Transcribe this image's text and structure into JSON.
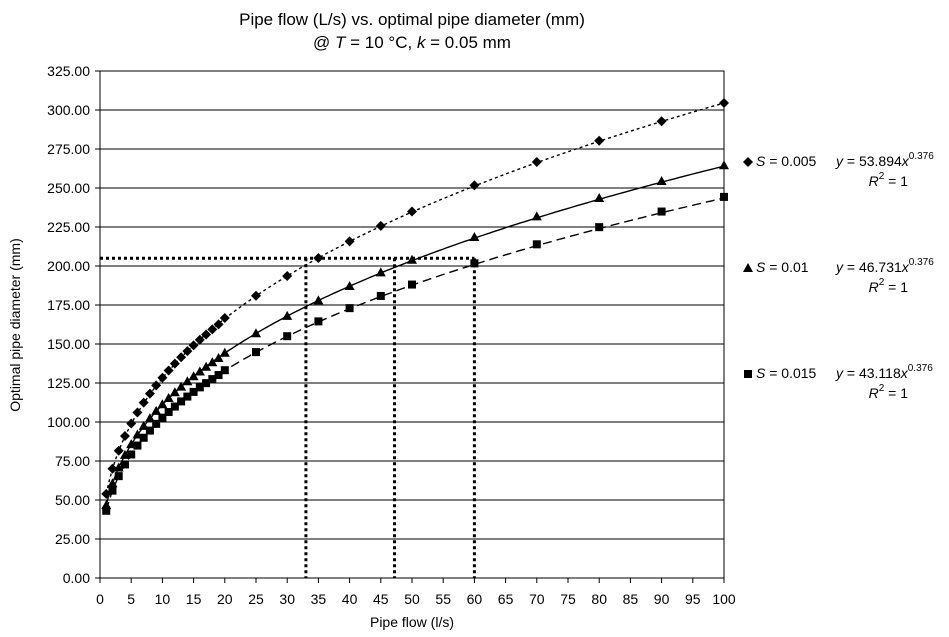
{
  "chart_data": {
    "type": "scatter",
    "title_line1": "Pipe flow (L/s) vs. optimal pipe diameter (mm)",
    "title_line2": {
      "prefix": "@ ",
      "t_var": "T",
      "t_rest": " = 10 °C, ",
      "k_var": "k",
      "k_rest": " = 0.05 mm"
    },
    "xlabel": "Pipe flow  (l/s)",
    "ylabel": "Optimal pipe diameter (mm)",
    "xlim": [
      0,
      100
    ],
    "ylim": [
      0,
      325
    ],
    "x_ticks": [
      0,
      5,
      10,
      15,
      20,
      25,
      30,
      35,
      40,
      45,
      50,
      55,
      60,
      65,
      70,
      75,
      80,
      85,
      90,
      95,
      100
    ],
    "y_ticks": [
      "0.00",
      "25.00",
      "50.00",
      "75.00",
      "100.00",
      "125.00",
      "150.00",
      "175.00",
      "200.00",
      "225.00",
      "250.00",
      "275.00",
      "300.00",
      "325.00"
    ],
    "grid": "horizontal",
    "legend_position": "right",
    "x": [
      1,
      2,
      3,
      4,
      5,
      6,
      7,
      8,
      9,
      10,
      11,
      12,
      13,
      14,
      15,
      16,
      17,
      18,
      19,
      20,
      25,
      30,
      35,
      40,
      45,
      50,
      60,
      70,
      80,
      90,
      100
    ],
    "series": [
      {
        "label_var": "S",
        "label_rest": " = 0.005",
        "marker": "diamond",
        "line": "short-dash",
        "coef": 53.894,
        "exp": 0.376,
        "eq_prefix": "y",
        "eq_mid": " = 53.894",
        "eq_x": "x",
        "eq_exp": "0.376",
        "r2_var": "R",
        "r2_sup": "2",
        "r2_rest": " = 1",
        "values": [
          53.9,
          70.0,
          81.6,
          91.0,
          99.0,
          106.1,
          112.4,
          118.2,
          123.5,
          128.4,
          133.0,
          137.4,
          141.5,
          145.4,
          149.1,
          152.7,
          156.1,
          159.4,
          162.6,
          166.7,
          180.9,
          193.6,
          205.1,
          215.8,
          225.7,
          234.9,
          251.7,
          266.7,
          280.3,
          292.8,
          304.5
        ]
      },
      {
        "label_var": "S",
        "label_rest": " = 0.01",
        "marker": "triangle",
        "line": "solid",
        "coef": 46.731,
        "exp": 0.376,
        "eq_prefix": "y",
        "eq_mid": " = 46.731",
        "eq_x": "x",
        "eq_exp": "0.376",
        "r2_var": "R",
        "r2_sup": "2",
        "r2_rest": " = 1",
        "values": [
          46.7,
          60.7,
          70.8,
          78.9,
          85.8,
          92.0,
          97.5,
          102.5,
          107.1,
          111.4,
          115.4,
          119.1,
          122.7,
          126.1,
          129.3,
          132.4,
          135.4,
          138.3,
          141.0,
          144.4,
          156.9,
          168.0,
          178.0,
          187.2,
          195.9,
          204.0,
          218.6,
          231.8,
          243.6,
          254.5,
          264.6
        ]
      },
      {
        "label_var": "S",
        "label_rest": " = 0.015",
        "marker": "square",
        "line": "long-dash",
        "coef": 43.118,
        "exp": 0.376,
        "eq_prefix": "y",
        "eq_mid": " = 43.118",
        "eq_x": "x",
        "eq_exp": "0.376",
        "r2_var": "R",
        "r2_sup": "2",
        "r2_rest": " = 1",
        "values": [
          43.1,
          56.0,
          65.3,
          72.8,
          79.2,
          84.9,
          89.9,
          94.5,
          98.8,
          102.8,
          106.4,
          109.9,
          113.2,
          116.3,
          119.3,
          122.2,
          124.9,
          127.5,
          130.1,
          133.2,
          144.8,
          155.0,
          164.5,
          173.0,
          180.8,
          188.1,
          201.7,
          213.9,
          224.9,
          234.9,
          244.3
        ]
      }
    ],
    "reference_lines": {
      "y": 205,
      "x_values": [
        33,
        47.2,
        60
      ]
    }
  }
}
